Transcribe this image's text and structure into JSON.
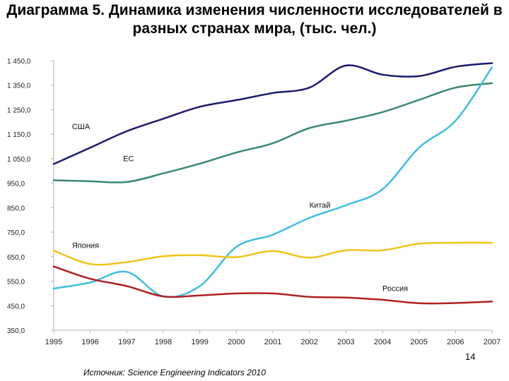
{
  "slide": {
    "title_line1": "Диаграмма 5. Динамика изменения численности исследователей в",
    "title_line2": "разных странах мира, (тыс. чел.)",
    "page_number": "14",
    "source": "Источник: Science Engineering Indicators 2010"
  },
  "chart_data": {
    "type": "line",
    "title": "Диаграмма 5. Динамика изменения численности исследователей в разных странах мира, (тыс. чел.)",
    "xlabel": "",
    "ylabel": "",
    "x": [
      1995,
      1996,
      1997,
      1998,
      1999,
      2000,
      2001,
      2002,
      2003,
      2004,
      2005,
      2006,
      2007
    ],
    "x_tick_labels": [
      "1995",
      "1996",
      "1997",
      "1998",
      "1999",
      "2000",
      "2001",
      "2002",
      "2003",
      "2004",
      "2005",
      "2006",
      "2007"
    ],
    "ylim": [
      350,
      1450
    ],
    "y_ticks": [
      350,
      450,
      550,
      650,
      750,
      850,
      950,
      1050,
      1150,
      1250,
      1350,
      1450
    ],
    "y_tick_labels": [
      "350,0",
      "450,0",
      "550,0",
      "650,0",
      "750,0",
      "850,0",
      "950,0",
      "1 050,0",
      "1 150,0",
      "1 250,0",
      "1 350,0",
      "1 450,0"
    ],
    "grid": false,
    "legend": "inline labels",
    "series": [
      {
        "name": "США",
        "color": "#1a1a6e",
        "label_year": 1995.5,
        "label_value": 1170,
        "values": [
          1028,
          1095,
          1162,
          1213,
          1262,
          1289,
          1318,
          1340,
          1430,
          1393,
          1387,
          1425,
          1440
        ]
      },
      {
        "name": "ЕС",
        "color": "#3a8a6a",
        "label_year": 1996.9,
        "label_value": 1040,
        "values": [
          962,
          958,
          955,
          990,
          1030,
          1075,
          1113,
          1175,
          1205,
          1240,
          1290,
          1340,
          1358
        ]
      },
      {
        "name": "Китай",
        "color": "#3cbfe0",
        "label_year": 2002.0,
        "label_value": 850,
        "values": [
          520,
          545,
          588,
          488,
          530,
          690,
          740,
          808,
          860,
          925,
          1095,
          1205,
          1423
        ]
      },
      {
        "name": "Япония",
        "color": "#f0c419",
        "label_year": 1995.5,
        "label_value": 685,
        "values": [
          675,
          620,
          628,
          652,
          656,
          648,
          673,
          646,
          676,
          676,
          703,
          707,
          707
        ]
      },
      {
        "name": "Россия",
        "color": "#b02020",
        "label_year": 2004.0,
        "label_value": 510,
        "values": [
          610,
          560,
          530,
          488,
          492,
          500,
          500,
          486,
          483,
          474,
          460,
          461,
          467
        ]
      }
    ]
  }
}
